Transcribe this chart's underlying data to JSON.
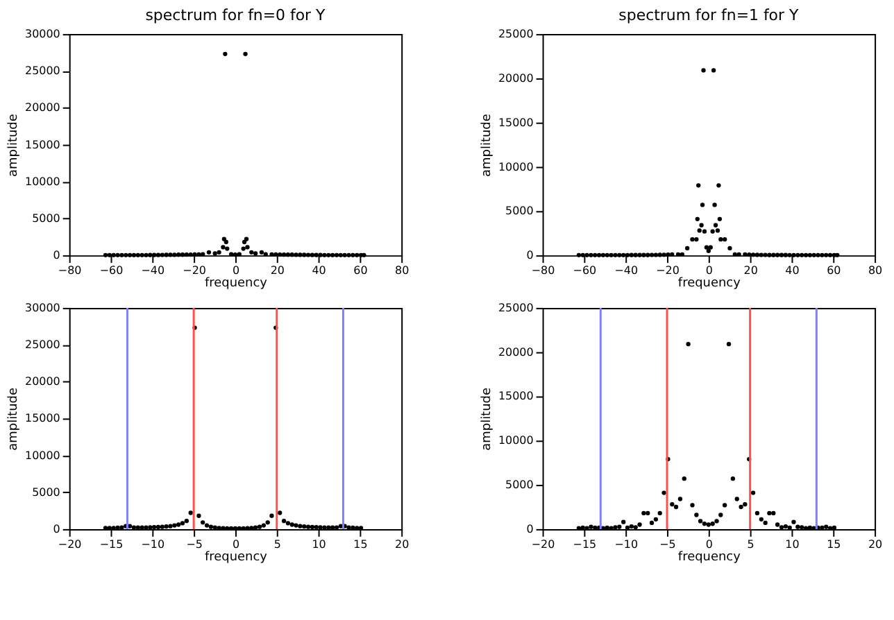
{
  "chart_data": [
    {
      "type": "scatter",
      "title": "spectrum for fn=0 for Y",
      "xlabel": "frequency",
      "ylabel": "amplitude",
      "color": "#000000",
      "marker": "circle",
      "xlim": [
        -80,
        80
      ],
      "xticks": [
        -80,
        -60,
        -40,
        -20,
        0,
        20,
        40,
        60,
        80
      ],
      "ylim": [
        0,
        30000
      ],
      "yticks": [
        0,
        5000,
        10000,
        15000,
        20000,
        25000,
        30000
      ],
      "x": [
        -62.5,
        -60.55,
        -58.59,
        -56.64,
        -54.69,
        -52.73,
        -50.78,
        -48.83,
        -46.88,
        -44.92,
        -42.97,
        -41.02,
        -39.06,
        -37.11,
        -35.16,
        -33.2,
        -31.25,
        -29.3,
        -27.34,
        -25.39,
        -23.44,
        -21.48,
        -19.53,
        -17.58,
        -15.63,
        -12.7,
        -9.77,
        -7.81,
        -5.86,
        -5.37,
        -4.88,
        -4.39,
        -3.91,
        -1.95,
        0,
        1.95,
        3.91,
        4.39,
        4.88,
        5.37,
        5.86,
        7.81,
        9.77,
        12.7,
        14.65,
        17.58,
        19.53,
        21.48,
        23.44,
        25.39,
        27.34,
        29.3,
        31.25,
        33.2,
        35.16,
        37.11,
        39.06,
        41.02,
        42.97,
        44.92,
        46.88,
        48.83,
        50.78,
        52.73,
        54.69,
        56.64,
        58.59,
        60.55,
        62.01
      ],
      "values": [
        30,
        30,
        30,
        30,
        30,
        30,
        30,
        30,
        30,
        30,
        30,
        40,
        40,
        40,
        50,
        60,
        70,
        70,
        80,
        80,
        90,
        100,
        110,
        120,
        150,
        400,
        250,
        400,
        1100,
        2200,
        27300,
        1800,
        900,
        150,
        100,
        150,
        900,
        1800,
        27300,
        2200,
        1100,
        400,
        250,
        400,
        150,
        120,
        110,
        100,
        90,
        80,
        80,
        70,
        70,
        60,
        50,
        40,
        40,
        40,
        30,
        30,
        30,
        30,
        30,
        30,
        30,
        30,
        30,
        30,
        30
      ]
    },
    {
      "type": "scatter",
      "title": "spectrum for fn=1 for Y",
      "xlabel": "frequency",
      "ylabel": "amplitude",
      "color": "#000000",
      "marker": "circle",
      "xlim": [
        -80,
        80
      ],
      "xticks": [
        -80,
        -60,
        -40,
        -20,
        0,
        20,
        40,
        60,
        80
      ],
      "ylim": [
        0,
        25000
      ],
      "yticks": [
        0,
        5000,
        10000,
        15000,
        20000,
        25000
      ],
      "x": [
        -62.5,
        -60.55,
        -58.59,
        -56.64,
        -54.69,
        -52.73,
        -50.78,
        -48.83,
        -46.88,
        -44.92,
        -42.97,
        -41.02,
        -39.06,
        -37.11,
        -35.16,
        -33.2,
        -31.25,
        -29.3,
        -27.34,
        -25.39,
        -23.44,
        -21.48,
        -19.53,
        -17.58,
        -14.65,
        -12.7,
        -10.25,
        -7.81,
        -5.86,
        -5.37,
        -4.88,
        -4.39,
        -3.42,
        -2.93,
        -2.44,
        -1.95,
        -0.98,
        0,
        0.98,
        1.95,
        2.44,
        2.93,
        3.42,
        4.39,
        4.88,
        5.37,
        5.86,
        7.81,
        10.25,
        12.7,
        14.65,
        17.58,
        19.53,
        21.48,
        23.44,
        25.39,
        27.34,
        29.3,
        31.25,
        33.2,
        35.16,
        37.11,
        39.06,
        41.02,
        42.97,
        44.92,
        46.88,
        48.83,
        50.78,
        52.73,
        54.69,
        56.64,
        58.59,
        60.55,
        62.01
      ],
      "values": [
        20,
        20,
        20,
        20,
        20,
        20,
        20,
        20,
        20,
        20,
        20,
        20,
        20,
        30,
        30,
        30,
        30,
        30,
        40,
        40,
        50,
        60,
        80,
        100,
        100,
        100,
        800,
        1800,
        1800,
        4100,
        7900,
        2800,
        3400,
        5700,
        20900,
        2700,
        900,
        500,
        900,
        2700,
        20900,
        5700,
        3400,
        2800,
        7900,
        4100,
        1800,
        1800,
        800,
        100,
        100,
        100,
        80,
        60,
        50,
        40,
        40,
        30,
        30,
        30,
        30,
        30,
        20,
        20,
        20,
        20,
        20,
        20,
        20,
        20,
        20,
        20,
        20,
        20,
        20
      ]
    },
    {
      "type": "scatter",
      "xlabel": "frequency",
      "ylabel": "amplitude",
      "color": "#000000",
      "marker": "circle",
      "xlim": [
        -20,
        20
      ],
      "xticks": [
        -20,
        -15,
        -10,
        -5,
        0,
        5,
        10,
        15,
        20
      ],
      "ylim": [
        0,
        30000
      ],
      "yticks": [
        0,
        5000,
        10000,
        15000,
        20000,
        25000,
        30000
      ],
      "x": [
        -15.63,
        -15.14,
        -14.65,
        -14.16,
        -13.67,
        -13.18,
        -12.7,
        -12.21,
        -11.72,
        -11.23,
        -10.74,
        -10.25,
        -9.77,
        -9.28,
        -8.79,
        -8.3,
        -7.81,
        -7.32,
        -6.84,
        -6.35,
        -5.86,
        -5.37,
        -4.88,
        -4.39,
        -3.91,
        -3.42,
        -2.93,
        -2.44,
        -1.95,
        -1.46,
        -0.98,
        -0.49,
        0,
        0.49,
        0.98,
        1.46,
        1.95,
        2.44,
        2.93,
        3.42,
        3.91,
        4.39,
        4.88,
        5.37,
        5.86,
        6.35,
        6.84,
        7.32,
        7.81,
        8.3,
        8.79,
        9.28,
        9.77,
        10.25,
        10.74,
        11.23,
        11.72,
        12.21,
        12.7,
        13.18,
        13.67,
        14.16,
        14.65,
        15.14
      ],
      "values": [
        150,
        150,
        150,
        180,
        200,
        400,
        400,
        220,
        200,
        200,
        210,
        230,
        250,
        280,
        300,
        350,
        400,
        500,
        600,
        800,
        1100,
        2200,
        27300,
        1800,
        900,
        500,
        300,
        200,
        150,
        120,
        100,
        100,
        100,
        100,
        100,
        120,
        150,
        200,
        300,
        500,
        900,
        1800,
        27300,
        2200,
        1100,
        800,
        600,
        500,
        400,
        350,
        300,
        280,
        250,
        230,
        210,
        200,
        200,
        220,
        400,
        400,
        200,
        180,
        150,
        150
      ],
      "ref_lines": [
        {
          "axis": "x",
          "value": -13,
          "color": "#8080ff"
        },
        {
          "axis": "x",
          "value": -5,
          "color": "#ff5050"
        },
        {
          "axis": "x",
          "value": 5,
          "color": "#ff5050"
        },
        {
          "axis": "x",
          "value": 13,
          "color": "#8080ff"
        }
      ]
    },
    {
      "type": "scatter",
      "xlabel": "frequency",
      "ylabel": "amplitude",
      "color": "#000000",
      "marker": "circle",
      "xlim": [
        -20,
        20
      ],
      "xticks": [
        -20,
        -15,
        -10,
        -5,
        0,
        5,
        10,
        15,
        20
      ],
      "ylim": [
        0,
        25000
      ],
      "yticks": [
        0,
        5000,
        10000,
        15000,
        20000,
        25000
      ],
      "x": [
        -15.63,
        -15.14,
        -14.65,
        -14.16,
        -13.67,
        -13.18,
        -12.7,
        -12.21,
        -11.72,
        -11.23,
        -10.74,
        -10.25,
        -9.77,
        -9.28,
        -8.79,
        -8.3,
        -7.81,
        -7.32,
        -6.84,
        -6.35,
        -5.86,
        -5.37,
        -4.88,
        -4.39,
        -3.91,
        -3.42,
        -2.93,
        -2.44,
        -1.95,
        -1.46,
        -0.98,
        -0.49,
        0,
        0.49,
        0.98,
        1.46,
        1.95,
        2.44,
        2.93,
        3.42,
        3.91,
        4.39,
        4.88,
        5.37,
        5.86,
        6.35,
        6.84,
        7.32,
        7.81,
        8.3,
        8.79,
        9.28,
        9.77,
        10.25,
        10.74,
        11.23,
        11.72,
        12.21,
        12.7,
        13.18,
        13.67,
        14.16,
        14.65,
        15.14
      ],
      "values": [
        100,
        150,
        100,
        250,
        150,
        150,
        100,
        150,
        100,
        200,
        250,
        800,
        150,
        300,
        200,
        500,
        1800,
        1800,
        700,
        1100,
        1800,
        4100,
        7900,
        2800,
        2500,
        3400,
        5700,
        20900,
        2700,
        1600,
        900,
        600,
        500,
        600,
        900,
        1600,
        2700,
        20900,
        5700,
        3400,
        2500,
        2800,
        7900,
        4100,
        1800,
        1100,
        700,
        1800,
        1800,
        500,
        200,
        300,
        150,
        800,
        250,
        200,
        100,
        150,
        100,
        150,
        150,
        250,
        100,
        150
      ],
      "ref_lines": [
        {
          "axis": "x",
          "value": -13,
          "color": "#8080ff"
        },
        {
          "axis": "x",
          "value": -5,
          "color": "#ff5050"
        },
        {
          "axis": "x",
          "value": 5,
          "color": "#ff5050"
        },
        {
          "axis": "x",
          "value": 13,
          "color": "#8080ff"
        }
      ]
    }
  ]
}
